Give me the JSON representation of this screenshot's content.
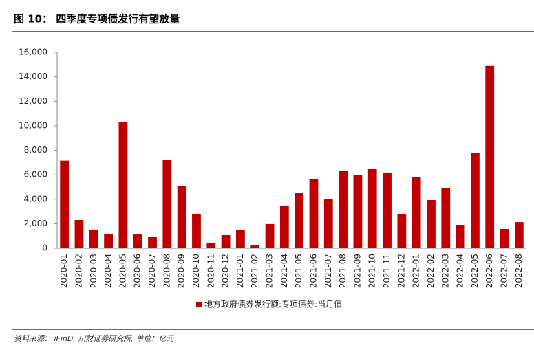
{
  "chart_data": {
    "type": "bar",
    "title": "图 10： 四季度专项债发行有望放量",
    "source": "资料来源： iFinD, 川财证券研究所, 单位：亿元",
    "categories": [
      "2020-01",
      "2020-02",
      "2020-03",
      "2020-04",
      "2020-05",
      "2020-06",
      "2020-07",
      "2020-08",
      "2020-09",
      "2020-10",
      "2020-11",
      "2020-12",
      "2021-01",
      "2021-02",
      "2021-03",
      "2021-04",
      "2021-05",
      "2021-06",
      "2021-07",
      "2021-08",
      "2021-09",
      "2021-10",
      "2021-11",
      "2021-12",
      "2022-01",
      "2022-02",
      "2022-03",
      "2022-04",
      "2022-05",
      "2022-06",
      "2022-07",
      "2022-08"
    ],
    "series": [
      {
        "name": "地方政府债券发行额:专项债券:当月值",
        "color": "#c00000",
        "values": [
          7150,
          2300,
          1520,
          1180,
          10280,
          1120,
          900,
          7190,
          5060,
          2810,
          450,
          1070,
          1460,
          220,
          1970,
          3430,
          4490,
          5620,
          4040,
          6350,
          6010,
          6460,
          6180,
          2810,
          5790,
          3930,
          4890,
          1910,
          7750,
          14890,
          1570,
          2130
        ]
      }
    ],
    "ylim": [
      0,
      16000
    ],
    "yticks": [
      0,
      {
        "value": 2000,
        "label": "2,000"
      },
      {
        "value": 4000,
        "label": "4,000"
      },
      {
        "value": 6000,
        "label": "6,000"
      },
      {
        "value": 8000,
        "label": "8,000"
      },
      {
        "value": 10000,
        "label": "10,000"
      },
      {
        "value": 12000,
        "label": "12,000"
      },
      {
        "value": 14000,
        "label": "14,000"
      },
      {
        "value": 16000,
        "label": "16,000"
      }
    ],
    "legend": "bottom"
  }
}
